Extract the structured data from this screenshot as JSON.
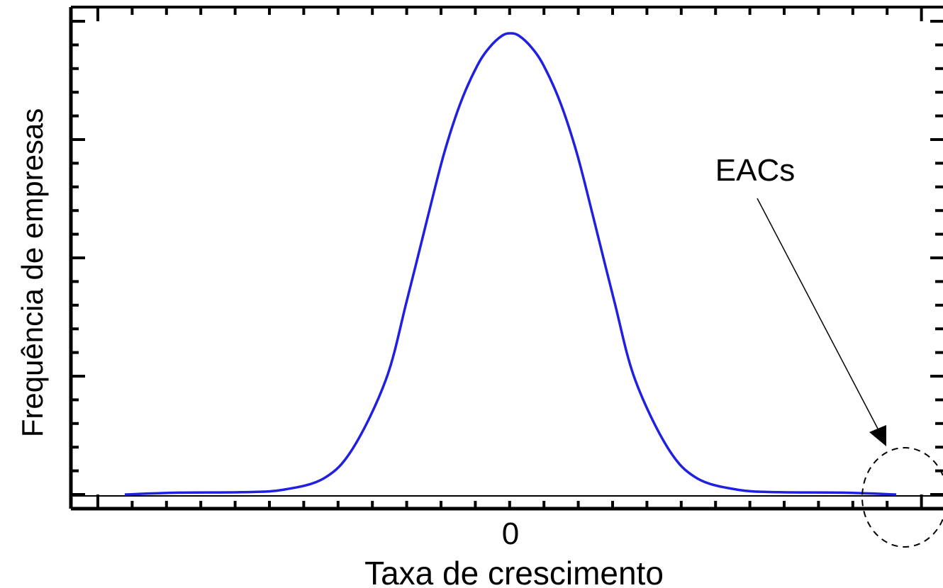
{
  "chart_data": {
    "type": "line",
    "title": "",
    "xlabel": "Taxa de crescimento",
    "ylabel": "Frequência de empresas",
    "x_tick_labels": [
      {
        "value": 0,
        "label": "0"
      }
    ],
    "xlim": [
      -1.0,
      1.0
    ],
    "ylim": [
      0,
      1.0
    ],
    "grid": false,
    "line_color": "#2020e0",
    "series": [
      {
        "x": [
          -0.93,
          -0.8,
          -0.65,
          -0.55,
          -0.45,
          -0.38,
          -0.3,
          -0.25,
          -0.2,
          -0.16,
          -0.12,
          -0.08,
          -0.05,
          -0.02,
          0.0,
          0.02,
          0.05,
          0.08,
          0.12,
          0.16,
          0.2,
          0.25,
          0.3,
          0.38,
          0.45,
          0.55,
          0.65,
          0.8,
          0.93
        ],
        "y": [
          0.0,
          0.004,
          0.005,
          0.01,
          0.035,
          0.1,
          0.25,
          0.42,
          0.6,
          0.74,
          0.85,
          0.93,
          0.97,
          0.995,
          1.0,
          0.995,
          0.97,
          0.93,
          0.85,
          0.74,
          0.6,
          0.42,
          0.25,
          0.1,
          0.035,
          0.01,
          0.005,
          0.004,
          0.0
        ]
      }
    ],
    "annotation": {
      "text": "EACs",
      "target": {
        "x": 0.85,
        "y": 0.0
      }
    }
  }
}
